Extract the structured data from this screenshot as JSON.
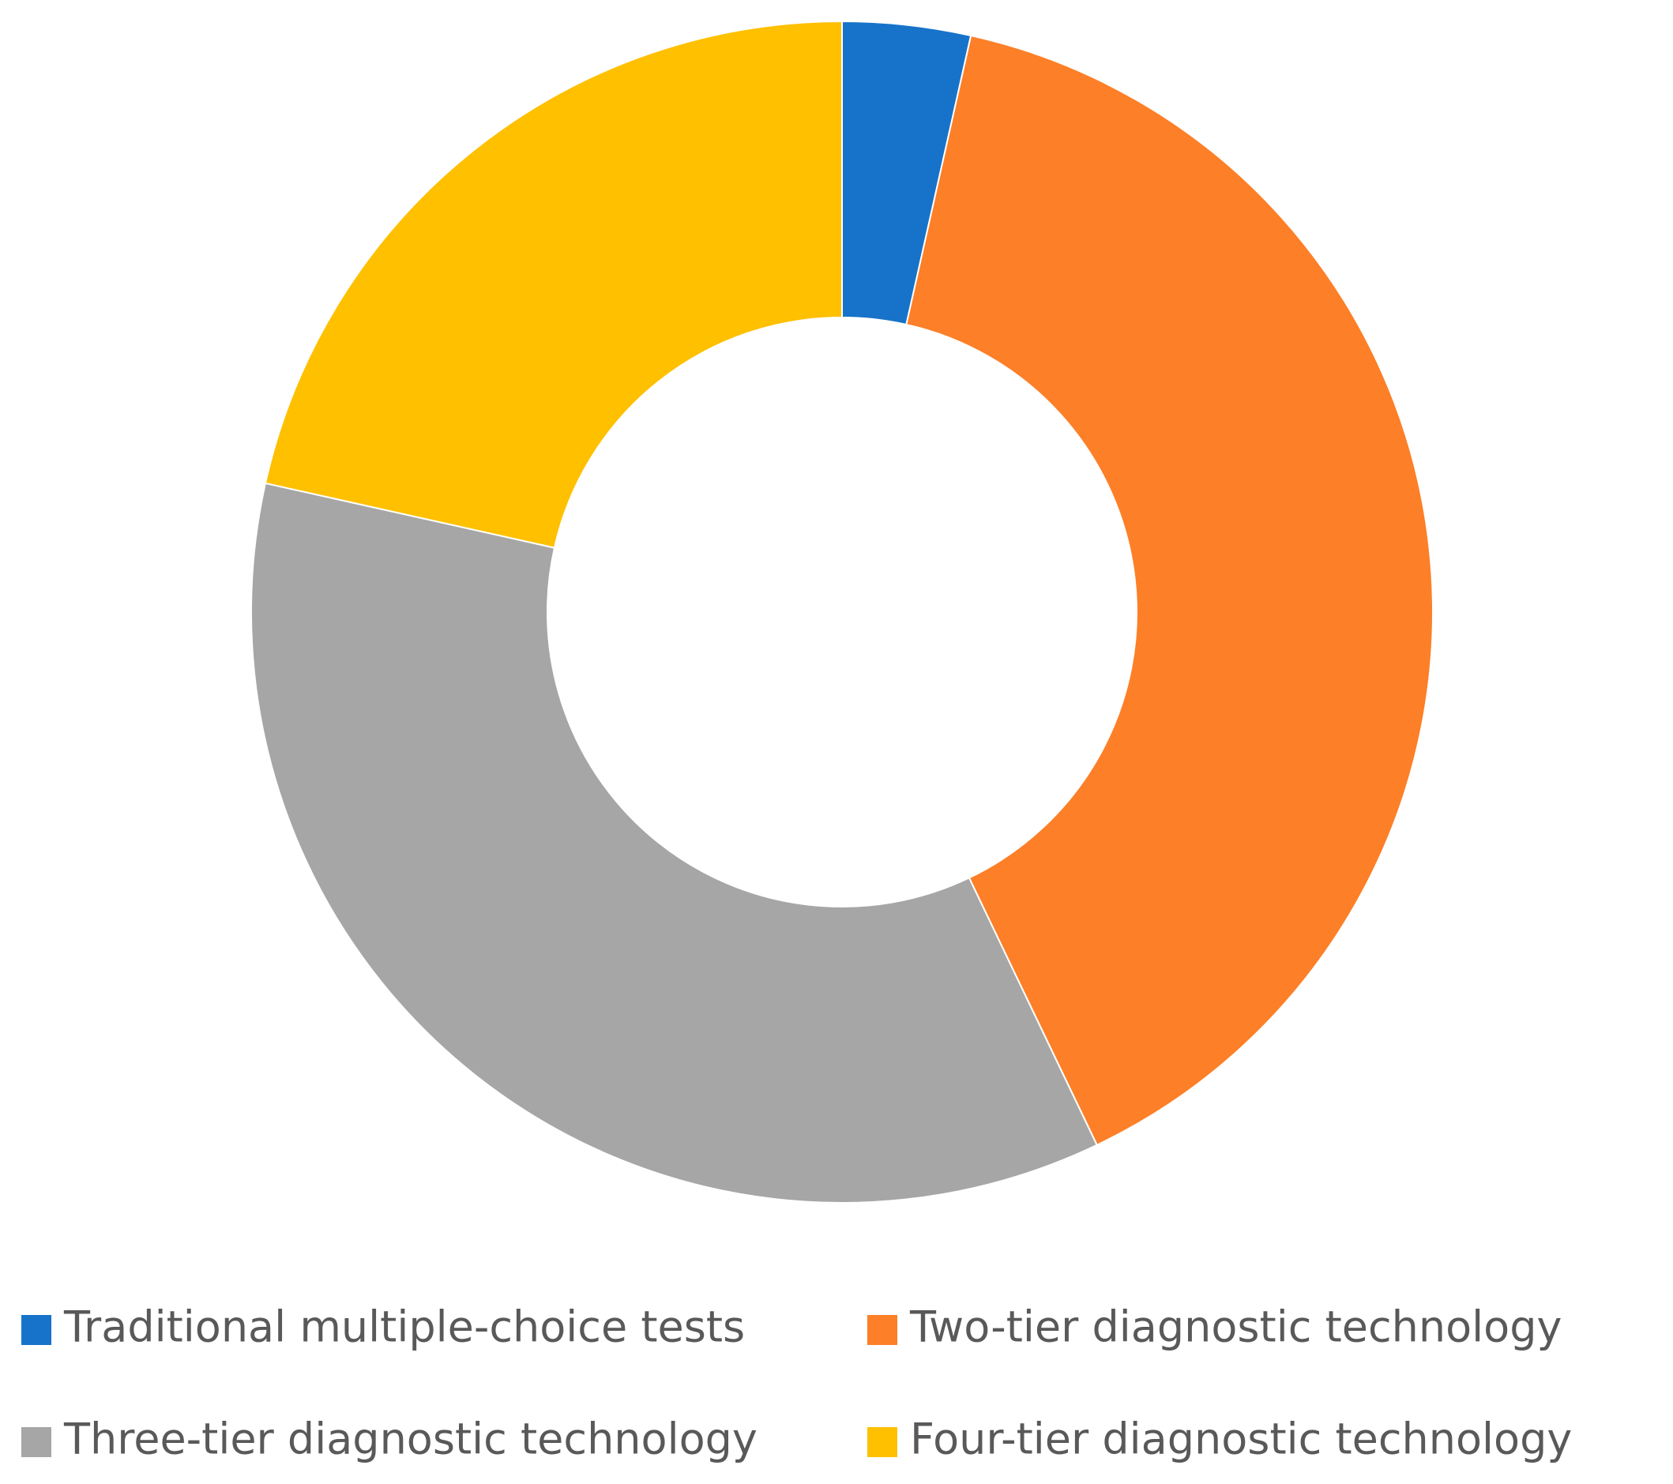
{
  "chart_data": {
    "type": "donut",
    "categories": [
      "Traditional multiple-choice tests",
      "Two-tier diagnostic technology",
      "Three-tier diagnostic technology",
      "Four-tier diagnostic technology"
    ],
    "values": [
      3.5,
      39.4,
      35.6,
      21.5
    ],
    "colors": [
      "#1773c9",
      "#fd7f27",
      "#a6a6a6",
      "#ffc000"
    ],
    "legend": "bottom"
  }
}
